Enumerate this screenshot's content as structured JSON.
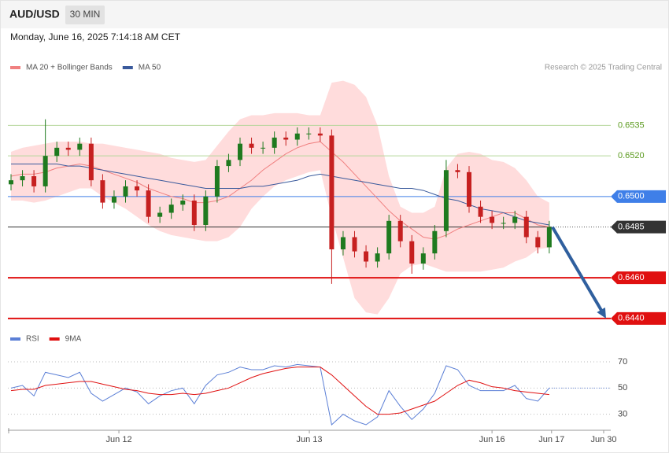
{
  "chart_data": {
    "type": "candlestick",
    "title": "AUD/USD",
    "timeframe": "30 MIN",
    "subtitle": "Monday, June 16, 2025 7:14:18 AM CET",
    "source": "Research © 2025 Trading Central",
    "xlim": [
      -0.275,
      52.37
    ],
    "xticks": [
      {
        "value": 9.42,
        "label": "Jun 12"
      },
      {
        "value": 26.05,
        "label": "Jun 13"
      },
      {
        "value": 42.0,
        "label": "Jun 16"
      },
      {
        "value": 47.2,
        "label": "Jun 17"
      },
      {
        "value": 51.75,
        "label": "Jun 30"
      }
    ],
    "ylim": [
      0.6438,
      0.6558
    ],
    "up_color": "#1f7a1f",
    "down_color": "#c62020",
    "open": [
      0.6506,
      0.6508,
      0.651,
      0.6505,
      0.652,
      0.6524,
      0.6523,
      0.6526,
      0.6508,
      0.6497,
      0.65,
      0.6505,
      0.6503,
      0.649,
      0.6492,
      0.6496,
      0.6498,
      0.6486,
      0.65,
      0.6515,
      0.6518,
      0.6526,
      0.6524,
      0.6524,
      0.6529,
      0.6528,
      0.6531,
      0.6531,
      0.653,
      0.6474,
      0.648,
      0.6473,
      0.6468,
      0.6472,
      0.6488,
      0.6478,
      0.6467,
      0.6472,
      0.6483,
      0.6513,
      0.6512,
      0.6495,
      0.649,
      0.6487,
      0.6487,
      0.649,
      0.648,
      0.6475
    ],
    "high": [
      0.6511,
      0.6513,
      0.6513,
      0.6538,
      0.6527,
      0.6527,
      0.6529,
      0.6529,
      0.6511,
      0.6503,
      0.6508,
      0.6508,
      0.6506,
      0.6495,
      0.6499,
      0.6501,
      0.6501,
      0.6503,
      0.6518,
      0.6521,
      0.6529,
      0.6529,
      0.6527,
      0.6532,
      0.6532,
      0.6534,
      0.6534,
      0.6534,
      0.6533,
      0.6483,
      0.6483,
      0.6476,
      0.6475,
      0.6491,
      0.6491,
      0.6481,
      0.6475,
      0.6486,
      0.6518,
      0.6516,
      0.6515,
      0.6498,
      0.6493,
      0.649,
      0.6493,
      0.6493,
      0.6483,
      0.6488
    ],
    "low": [
      0.6503,
      0.6505,
      0.6502,
      0.6502,
      0.6517,
      0.652,
      0.652,
      0.6505,
      0.6494,
      0.6494,
      0.6497,
      0.65,
      0.6487,
      0.6487,
      0.6489,
      0.6493,
      0.6483,
      0.6483,
      0.6497,
      0.6512,
      0.6515,
      0.6521,
      0.6521,
      0.6521,
      0.6525,
      0.6525,
      0.6528,
      0.6527,
      0.6457,
      0.6471,
      0.647,
      0.6465,
      0.6465,
      0.6469,
      0.6475,
      0.6462,
      0.6464,
      0.6469,
      0.648,
      0.6509,
      0.6492,
      0.6487,
      0.6484,
      0.6484,
      0.6484,
      0.6477,
      0.6472,
      0.6472
    ],
    "close": [
      0.6508,
      0.651,
      0.6505,
      0.652,
      0.6524,
      0.6523,
      0.6526,
      0.6508,
      0.6497,
      0.65,
      0.6505,
      0.6503,
      0.649,
      0.6492,
      0.6496,
      0.6498,
      0.6486,
      0.65,
      0.6515,
      0.6518,
      0.6526,
      0.6524,
      0.6524,
      0.6529,
      0.6528,
      0.6531,
      0.6531,
      0.653,
      0.6474,
      0.648,
      0.6473,
      0.6468,
      0.6472,
      0.6488,
      0.6478,
      0.6467,
      0.6472,
      0.6483,
      0.6513,
      0.6512,
      0.6495,
      0.649,
      0.6487,
      0.6487,
      0.649,
      0.648,
      0.6475,
      0.6485
    ],
    "series": [
      {
        "name": "MA 20 + Bollinger Bands",
        "color": "#f08080",
        "band_color": "#ffdcdc",
        "values": [
          0.651,
          0.6511,
          0.6511,
          0.6512,
          0.6514,
          0.6515,
          0.6516,
          0.6515,
          0.6513,
          0.6511,
          0.6509,
          0.6507,
          0.6504,
          0.6502,
          0.65,
          0.6499,
          0.6497,
          0.6497,
          0.6498,
          0.65,
          0.6504,
          0.6508,
          0.6513,
          0.6517,
          0.6521,
          0.6524,
          0.6526,
          0.6527,
          0.6522,
          0.6517,
          0.6511,
          0.6505,
          0.6499,
          0.6493,
          0.6488,
          0.6484,
          0.648,
          0.6479,
          0.6481,
          0.6484,
          0.6486,
          0.6488,
          0.649,
          0.6492,
          0.6492,
          0.6489,
          0.6486,
          0.6485
        ],
        "upper": [
          0.6522,
          0.6524,
          0.6525,
          0.6526,
          0.6527,
          0.6527,
          0.6527,
          0.6526,
          0.6526,
          0.6525,
          0.6524,
          0.6523,
          0.6522,
          0.6521,
          0.6519,
          0.6518,
          0.6517,
          0.6518,
          0.6525,
          0.6532,
          0.6538,
          0.654,
          0.654,
          0.6541,
          0.6541,
          0.6541,
          0.654,
          0.654,
          0.6556,
          0.6557,
          0.6555,
          0.6549,
          0.6535,
          0.651,
          0.6495,
          0.6492,
          0.6492,
          0.6495,
          0.6514,
          0.6521,
          0.6522,
          0.6521,
          0.6518,
          0.6517,
          0.6514,
          0.6508,
          0.65,
          0.6497
        ],
        "lower": [
          0.6498,
          0.6498,
          0.6497,
          0.6498,
          0.65,
          0.6502,
          0.6504,
          0.6504,
          0.65,
          0.6497,
          0.6494,
          0.649,
          0.6486,
          0.6483,
          0.6481,
          0.648,
          0.6479,
          0.6478,
          0.6478,
          0.648,
          0.6485,
          0.6494,
          0.65,
          0.6505,
          0.6508,
          0.651,
          0.6512,
          0.6513,
          0.649,
          0.647,
          0.645,
          0.6443,
          0.6442,
          0.645,
          0.6462,
          0.6466,
          0.6467,
          0.6465,
          0.6463,
          0.6463,
          0.6463,
          0.6463,
          0.6464,
          0.6465,
          0.6468,
          0.647,
          0.6474,
          0.6475
        ]
      },
      {
        "name": "MA 50",
        "color": "#3a5a9c",
        "values": [
          0.6516,
          0.6516,
          0.6516,
          0.6516,
          0.6516,
          0.6515,
          0.6515,
          0.6514,
          0.6513,
          0.6512,
          0.6511,
          0.651,
          0.6509,
          0.6508,
          0.6507,
          0.6506,
          0.6505,
          0.6504,
          0.6504,
          0.6504,
          0.6504,
          0.6505,
          0.6505,
          0.6506,
          0.6507,
          0.6508,
          0.651,
          0.6511,
          0.651,
          0.6509,
          0.6508,
          0.6507,
          0.6506,
          0.6505,
          0.6504,
          0.6504,
          0.6503,
          0.6501,
          0.6499,
          0.6498,
          0.6496,
          0.6494,
          0.6493,
          0.6492,
          0.649,
          0.6488,
          0.6487,
          0.6486
        ]
      }
    ],
    "levels": [
      {
        "value": 0.6535,
        "label": "0.6535",
        "color": "#b5d69a",
        "text_color": "#5b9a1e",
        "style": "thin"
      },
      {
        "value": 0.652,
        "label": "0.6520",
        "color": "#b5d69a",
        "text_color": "#5b9a1e",
        "style": "thin"
      },
      {
        "value": 0.65,
        "label": "0.6500",
        "color": "#3f7fe8",
        "text_color": "#ffffff",
        "style": "box"
      },
      {
        "value": 0.6485,
        "label": "0.6485",
        "color": "#333333",
        "text_color": "#ffffff",
        "style": "dotted"
      },
      {
        "value": 0.646,
        "label": "0.6460",
        "color": "#e01010",
        "text_color": "#ffffff",
        "style": "thick"
      },
      {
        "value": 0.644,
        "label": "0.6440",
        "color": "#e01010",
        "text_color": "#ffffff",
        "style": "thick"
      }
    ],
    "forecast_color": "#2f5f9e",
    "rsi": {
      "ylim": [
        19,
        79
      ],
      "yticks": [
        30,
        50,
        70
      ],
      "series": [
        {
          "name": "RSI",
          "color": "#5b7fd6",
          "values": [
            50,
            52,
            44,
            62,
            60,
            58,
            62,
            46,
            40,
            45,
            50,
            47,
            38,
            44,
            48,
            50,
            38,
            52,
            60,
            62,
            66,
            64,
            64,
            67,
            66,
            68,
            67,
            66,
            22,
            30,
            25,
            22,
            28,
            48,
            36,
            26,
            34,
            46,
            67,
            64,
            52,
            48,
            48,
            48,
            52,
            42,
            40,
            50
          ]
        },
        {
          "name": "9MA",
          "color": "#e01010",
          "values": [
            48,
            49,
            49,
            52,
            53,
            54,
            55,
            55,
            53,
            51,
            49,
            48,
            46,
            45,
            45,
            46,
            45,
            46,
            48,
            50,
            54,
            58,
            61,
            63,
            65,
            66,
            66,
            66,
            60,
            52,
            44,
            36,
            30,
            30,
            31,
            34,
            37,
            40,
            46,
            52,
            56,
            54,
            51,
            50,
            48,
            47,
            46,
            45
          ]
        }
      ]
    }
  }
}
